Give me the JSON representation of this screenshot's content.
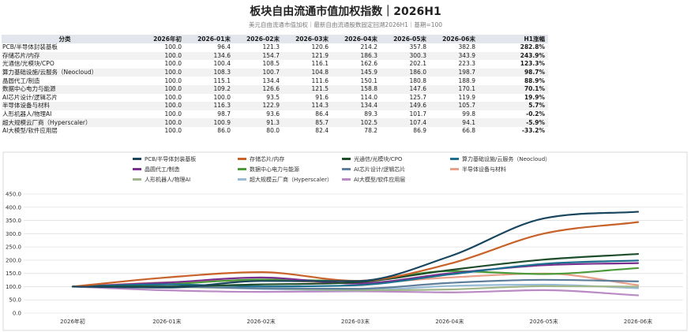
{
  "title": "板块自由流通市值加权指数｜2026H1",
  "subtitle": "美元自由流通市值加权｜最新自由流通股数固定回溯2026H1｜基期=100",
  "table": {
    "headers": [
      "分类",
      "2026年初",
      "2026-01末",
      "2026-02末",
      "2026-03末",
      "2026-04末",
      "2026-05末",
      "2026-06末",
      "H1涨幅"
    ],
    "rows": [
      [
        "PCB/半导体封装基板",
        "100.0",
        "96.4",
        "121.3",
        "120.6",
        "214.2",
        "357.8",
        "382.8",
        "282.8%"
      ],
      [
        "存储芯片/内存",
        "100.0",
        "134.6",
        "154.7",
        "121.9",
        "186.3",
        "300.3",
        "343.9",
        "243.9%"
      ],
      [
        "光通信/光模块/CPO",
        "100.0",
        "100.4",
        "108.5",
        "116.1",
        "162.6",
        "202.1",
        "223.3",
        "123.3%"
      ],
      [
        "算力基础设施/云服务（Neocloud）",
        "100.0",
        "108.3",
        "100.7",
        "104.8",
        "145.9",
        "186.0",
        "198.7",
        "98.7%"
      ],
      [
        "晶圆代工/制造",
        "100.0",
        "115.1",
        "134.4",
        "111.6",
        "150.1",
        "180.8",
        "188.9",
        "88.9%"
      ],
      [
        "数据中心电力与能源",
        "100.0",
        "109.2",
        "126.6",
        "121.5",
        "158.8",
        "147.6",
        "170.1",
        "70.1%"
      ],
      [
        "AI芯片设计/逻辑芯片",
        "100.0",
        "100.0",
        "93.5",
        "91.6",
        "114.0",
        "125.7",
        "119.9",
        "19.9%"
      ],
      [
        "半导体设备与材料",
        "100.0",
        "116.3",
        "122.9",
        "114.3",
        "134.4",
        "149.6",
        "105.7",
        "5.7%"
      ],
      [
        "人形机器人/物理AI",
        "100.0",
        "98.7",
        "93.6",
        "86.4",
        "89.3",
        "101.7",
        "99.8",
        "-0.2%"
      ],
      [
        "超大规模云厂商（Hyperscaler）",
        "100.0",
        "100.9",
        "91.3",
        "85.7",
        "102.5",
        "107.4",
        "94.1",
        "-5.9%"
      ],
      [
        "AI大模型/软件应用层",
        "100.0",
        "86.0",
        "80.0",
        "82.4",
        "78.2",
        "86.9",
        "66.8",
        "-33.2%"
      ]
    ]
  },
  "chart_data": {
    "type": "line",
    "title": "",
    "xlabel": "",
    "ylabel": "",
    "x": [
      "2026年初",
      "2026-01末",
      "2026-02末",
      "2026-03末",
      "2026-04末",
      "2026-05末",
      "2026-06末"
    ],
    "ylim": [
      0,
      450
    ],
    "yticks": [
      "0.0",
      "50.0",
      "100.0",
      "150.0",
      "200.0",
      "250.0",
      "300.0",
      "350.0",
      "400.0",
      "450.0"
    ],
    "grid": true,
    "legend_position": "top",
    "series": [
      {
        "name": "PCB/半导体封装基板",
        "color": "#17465e",
        "values": [
          100.0,
          96.4,
          121.3,
          120.6,
          214.2,
          357.8,
          382.8
        ]
      },
      {
        "name": "存储芯片/内存",
        "color": "#c8622a",
        "values": [
          100.0,
          134.6,
          154.7,
          121.9,
          186.3,
          300.3,
          343.9
        ]
      },
      {
        "name": "光通信/光模块/CPO",
        "color": "#1e4d2b",
        "values": [
          100.0,
          100.4,
          108.5,
          116.1,
          162.6,
          202.1,
          223.3
        ]
      },
      {
        "name": "算力基础设施/云服务（Neocloud）",
        "color": "#1a6e8e",
        "values": [
          100.0,
          108.3,
          100.7,
          104.8,
          145.9,
          186.0,
          198.7
        ]
      },
      {
        "name": "晶圆代工/制造",
        "color": "#7b2f8e",
        "values": [
          100.0,
          115.1,
          134.4,
          111.6,
          150.1,
          180.8,
          188.9
        ]
      },
      {
        "name": "数据中心电力与能源",
        "color": "#4c9a3a",
        "values": [
          100.0,
          109.2,
          126.6,
          121.5,
          158.8,
          147.6,
          170.1
        ]
      },
      {
        "name": "AI芯片设计/逻辑芯片",
        "color": "#5e7e9c",
        "values": [
          100.0,
          100.0,
          93.5,
          91.6,
          114.0,
          125.7,
          119.9
        ]
      },
      {
        "name": "半导体设备与材料",
        "color": "#e8a08a",
        "values": [
          100.0,
          116.3,
          122.9,
          114.3,
          134.4,
          149.6,
          105.7
        ]
      },
      {
        "name": "人形机器人/物理AI",
        "color": "#a2b68c",
        "values": [
          100.0,
          98.7,
          93.6,
          86.4,
          89.3,
          101.7,
          99.8
        ]
      },
      {
        "name": "超大规模云厂商（Hyperscaler）",
        "color": "#98bcd8",
        "values": [
          100.0,
          100.9,
          91.3,
          85.7,
          102.5,
          107.4,
          94.1
        ]
      },
      {
        "name": "AI大模型/软件应用层",
        "color": "#b98ac4",
        "values": [
          100.0,
          86.0,
          80.0,
          82.4,
          78.2,
          86.9,
          66.8
        ]
      }
    ]
  }
}
